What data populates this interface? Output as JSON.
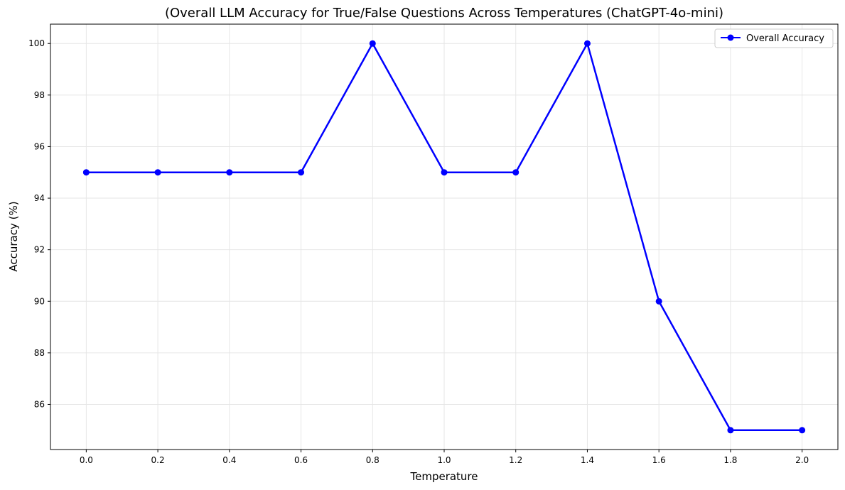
{
  "chart_data": {
    "type": "line",
    "title": "(Overall LLM Accuracy for True/False Questions Across Temperatures (ChatGPT-4o-mini)",
    "xlabel": "Temperature",
    "ylabel": "Accuracy (%)",
    "x": [
      0.0,
      0.2,
      0.4,
      0.6,
      0.8,
      1.0,
      1.2,
      1.4,
      1.6,
      1.8,
      2.0
    ],
    "x_tick_labels": [
      "0.0",
      "0.2",
      "0.4",
      "0.6",
      "0.8",
      "1.0",
      "1.2",
      "1.4",
      "1.6",
      "1.8",
      "2.0"
    ],
    "y_ticks": [
      86,
      88,
      90,
      92,
      94,
      96,
      98,
      100
    ],
    "xlim": [
      -0.1,
      2.1
    ],
    "ylim": [
      84.25,
      100.75
    ],
    "grid": true,
    "legend_position": "top-right",
    "series": [
      {
        "name": "Overall Accuracy",
        "color": "#0000ff",
        "marker": "circle",
        "values": [
          95,
          95,
          95,
          95,
          100,
          95,
          95,
          100,
          90,
          85,
          85
        ]
      }
    ]
  }
}
